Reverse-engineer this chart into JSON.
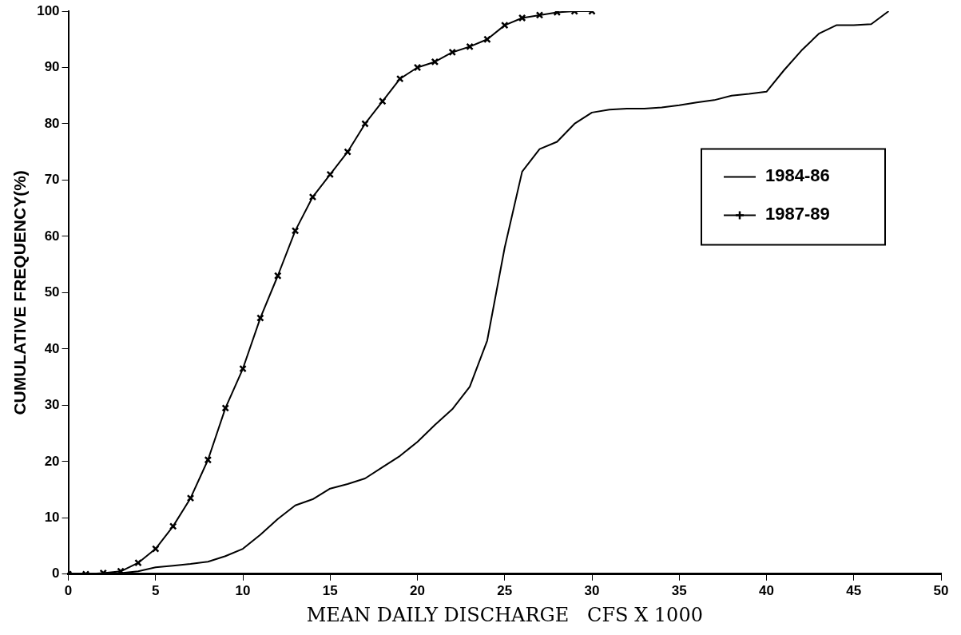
{
  "chart_data": {
    "type": "line",
    "xlabel": "MEAN DAILY DISCHARGE   CFS X 1000",
    "ylabel": "CUMULATIVE FREQUENCY(%)",
    "xlim": [
      0,
      50
    ],
    "xticks": [
      0,
      5,
      10,
      15,
      20,
      25,
      30,
      35,
      40,
      45,
      50
    ],
    "ylim": [
      0,
      100
    ],
    "yticks": [
      0,
      10,
      20,
      30,
      40,
      50,
      60,
      70,
      80,
      90,
      100
    ],
    "grid": false,
    "legend": "right",
    "series": [
      {
        "name": "1984-86",
        "color": "#000000",
        "marker": "none",
        "x": [
          0,
          3,
          4,
          5,
          6,
          7,
          8,
          9,
          10,
          11,
          12,
          13,
          14,
          15,
          16,
          17,
          18,
          19,
          20,
          21,
          22,
          23,
          24,
          25,
          26,
          27,
          28,
          29,
          30,
          31,
          32,
          33,
          34,
          35,
          36,
          37,
          38,
          39,
          40,
          41,
          42,
          43,
          44,
          45,
          46,
          47
        ],
        "values": [
          0,
          0.2,
          0.5,
          1.2,
          1.5,
          1.8,
          2.2,
          3.2,
          4.5,
          7,
          9.8,
          12.2,
          13.3,
          15.2,
          16,
          17,
          19,
          21,
          23.5,
          26.5,
          29.3,
          33.3,
          41.5,
          58,
          71.5,
          75.5,
          76.8,
          80,
          82,
          82.5,
          82.7,
          82.7,
          82.9,
          83.3,
          83.8,
          84.2,
          85,
          85.3,
          85.7,
          89.5,
          93,
          96,
          97.5,
          97.5,
          97.7,
          100
        ]
      },
      {
        "name": "1987-89",
        "color": "#000000",
        "marker": "cross",
        "x": [
          0,
          1,
          2,
          3,
          4,
          5,
          6,
          7,
          8,
          9,
          10,
          11,
          12,
          13,
          14,
          15,
          16,
          17,
          18,
          19,
          20,
          21,
          22,
          23,
          24,
          25,
          26,
          27,
          28,
          29,
          30
        ],
        "values": [
          0,
          0,
          0.2,
          0.5,
          2,
          4.5,
          8.5,
          13.5,
          20.3,
          29.5,
          36.5,
          45.5,
          53,
          61,
          67,
          71,
          75,
          80,
          84,
          88,
          90,
          91,
          92.7,
          93.7,
          95,
          97.5,
          98.8,
          99.3,
          99.8,
          100,
          100
        ]
      }
    ]
  }
}
